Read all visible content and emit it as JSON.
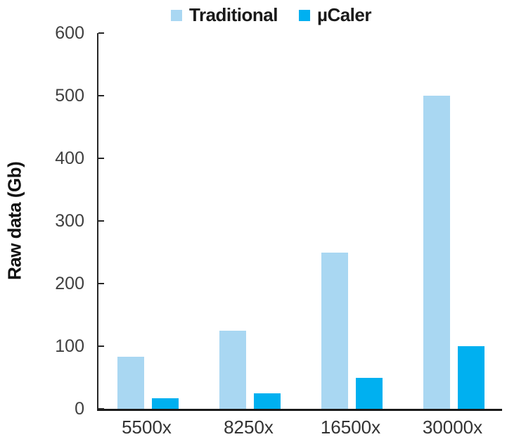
{
  "chart_data": {
    "type": "bar",
    "title": "",
    "xlabel": "",
    "ylabel": "Raw data (Gb)",
    "categories": [
      "5500x",
      "8250x",
      "16500x",
      "30000x"
    ],
    "series": [
      {
        "name": "Traditional",
        "color": "#A9D7F2",
        "values": [
          83,
          125,
          250,
          500
        ]
      },
      {
        "name": "µCaler",
        "color": "#00B0F0",
        "values": [
          17,
          25,
          50,
          100
        ]
      }
    ],
    "ylim": [
      0,
      600
    ],
    "yticks": [
      0,
      100,
      200,
      300,
      400,
      500,
      600
    ],
    "grid": false,
    "legend_position": "top",
    "axis_color": "#262626",
    "tick_label_color": "#404040"
  }
}
